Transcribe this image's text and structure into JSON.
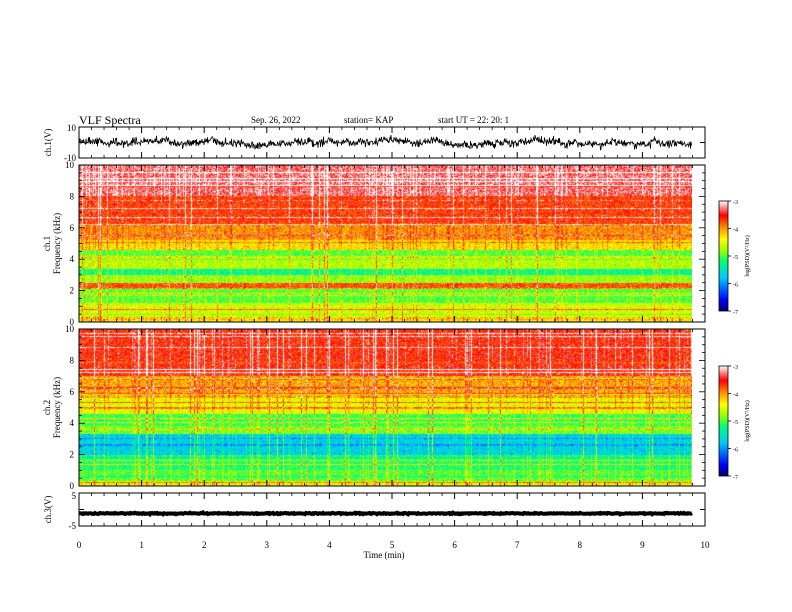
{
  "header": {
    "title": "VLF Spectra",
    "date": "Sep. 26, 2022",
    "station": "station= KAP",
    "start_ut": "start  UT  =   22: 20: 1"
  },
  "chart_data": [
    {
      "type": "line",
      "title": "",
      "ylabel": "ch.1(V)",
      "ylim": [
        -10,
        10
      ],
      "ytick_labels": [
        "10",
        "-10"
      ],
      "xlim": [
        0,
        9.85
      ],
      "note": "waveform oscillating around ~0 V, amplitude roughly ±5 V"
    },
    {
      "type": "heatmap",
      "ylabel": "ch.1\nFrequency  (kHz)",
      "ylim": [
        0,
        10
      ],
      "ytick_labels": [
        "0",
        "2",
        "4",
        "6",
        "8",
        "10"
      ],
      "xlim": [
        0,
        9.85
      ],
      "colorbar": {
        "label": "log(PSD)(V²/Hz)",
        "range": [
          -7,
          -3
        ],
        "tick_labels": [
          "-3",
          "-4",
          "-5",
          "-6",
          "-7"
        ]
      },
      "bands_log_psd": [
        {
          "f_low": 0.0,
          "f_high": 0.3,
          "log_psd": -4.2
        },
        {
          "f_low": 0.3,
          "f_high": 1.2,
          "log_psd": -4.6
        },
        {
          "f_low": 1.2,
          "f_high": 2.1,
          "log_psd": -5.0
        },
        {
          "f_low": 2.1,
          "f_high": 2.5,
          "log_psd": -3.8
        },
        {
          "f_low": 2.5,
          "f_high": 3.0,
          "log_psd": -4.8
        },
        {
          "f_low": 3.0,
          "f_high": 3.4,
          "log_psd": -5.3
        },
        {
          "f_low": 3.4,
          "f_high": 4.2,
          "log_psd": -4.7
        },
        {
          "f_low": 4.2,
          "f_high": 4.6,
          "log_psd": -5.0
        },
        {
          "f_low": 4.6,
          "f_high": 5.2,
          "log_psd": -4.3
        },
        {
          "f_low": 5.2,
          "f_high": 6.2,
          "log_psd": -4.0
        },
        {
          "f_low": 6.2,
          "f_high": 8.0,
          "log_psd": -3.7
        },
        {
          "f_low": 8.0,
          "f_high": 10.0,
          "log_psd": -3.3
        }
      ]
    },
    {
      "type": "heatmap",
      "ylabel": "ch.2\nFrequency  (kHz)",
      "ylim": [
        0,
        10
      ],
      "ytick_labels": [
        "0",
        "2",
        "4",
        "6",
        "8",
        "10"
      ],
      "xlim": [
        0,
        9.85
      ],
      "colorbar": {
        "label": "log(PSD)(V²/Hz)",
        "range": [
          -7,
          -3
        ],
        "tick_labels": [
          "-3",
          "-4",
          "-5",
          "-6",
          "-7"
        ]
      },
      "bands_log_psd": [
        {
          "f_low": 0.0,
          "f_high": 0.3,
          "log_psd": -4.5
        },
        {
          "f_low": 0.3,
          "f_high": 1.0,
          "log_psd": -5.0
        },
        {
          "f_low": 1.0,
          "f_high": 2.0,
          "log_psd": -5.2
        },
        {
          "f_low": 2.0,
          "f_high": 3.3,
          "log_psd": -5.7
        },
        {
          "f_low": 3.3,
          "f_high": 3.8,
          "log_psd": -4.9
        },
        {
          "f_low": 3.8,
          "f_high": 4.6,
          "log_psd": -5.1
        },
        {
          "f_low": 4.6,
          "f_high": 5.6,
          "log_psd": -4.5
        },
        {
          "f_low": 5.6,
          "f_high": 7.0,
          "log_psd": -4.1
        },
        {
          "f_low": 7.0,
          "f_high": 10.0,
          "log_psd": -3.6
        }
      ]
    },
    {
      "type": "line",
      "ylabel": "ch.3(V)",
      "ylim": [
        -5,
        5
      ],
      "ytick_labels": [
        "5",
        "-5"
      ],
      "xlim": [
        0,
        9.85
      ],
      "note": "nearly flat trace near -1.2 V"
    }
  ],
  "x_axis": {
    "label": "Time  (min)",
    "range": [
      0,
      10
    ],
    "tick_labels": [
      "0",
      "1",
      "2",
      "3",
      "4",
      "5",
      "6",
      "7",
      "8",
      "9",
      "10"
    ]
  },
  "colors": {
    "colormap": [
      "#00006e",
      "#0000ff",
      "#00c8ff",
      "#00ff78",
      "#9aff00",
      "#ffff00",
      "#ff9600",
      "#ff0000",
      "#ffffff"
    ],
    "axes": "#000000",
    "trace": "#000000"
  }
}
